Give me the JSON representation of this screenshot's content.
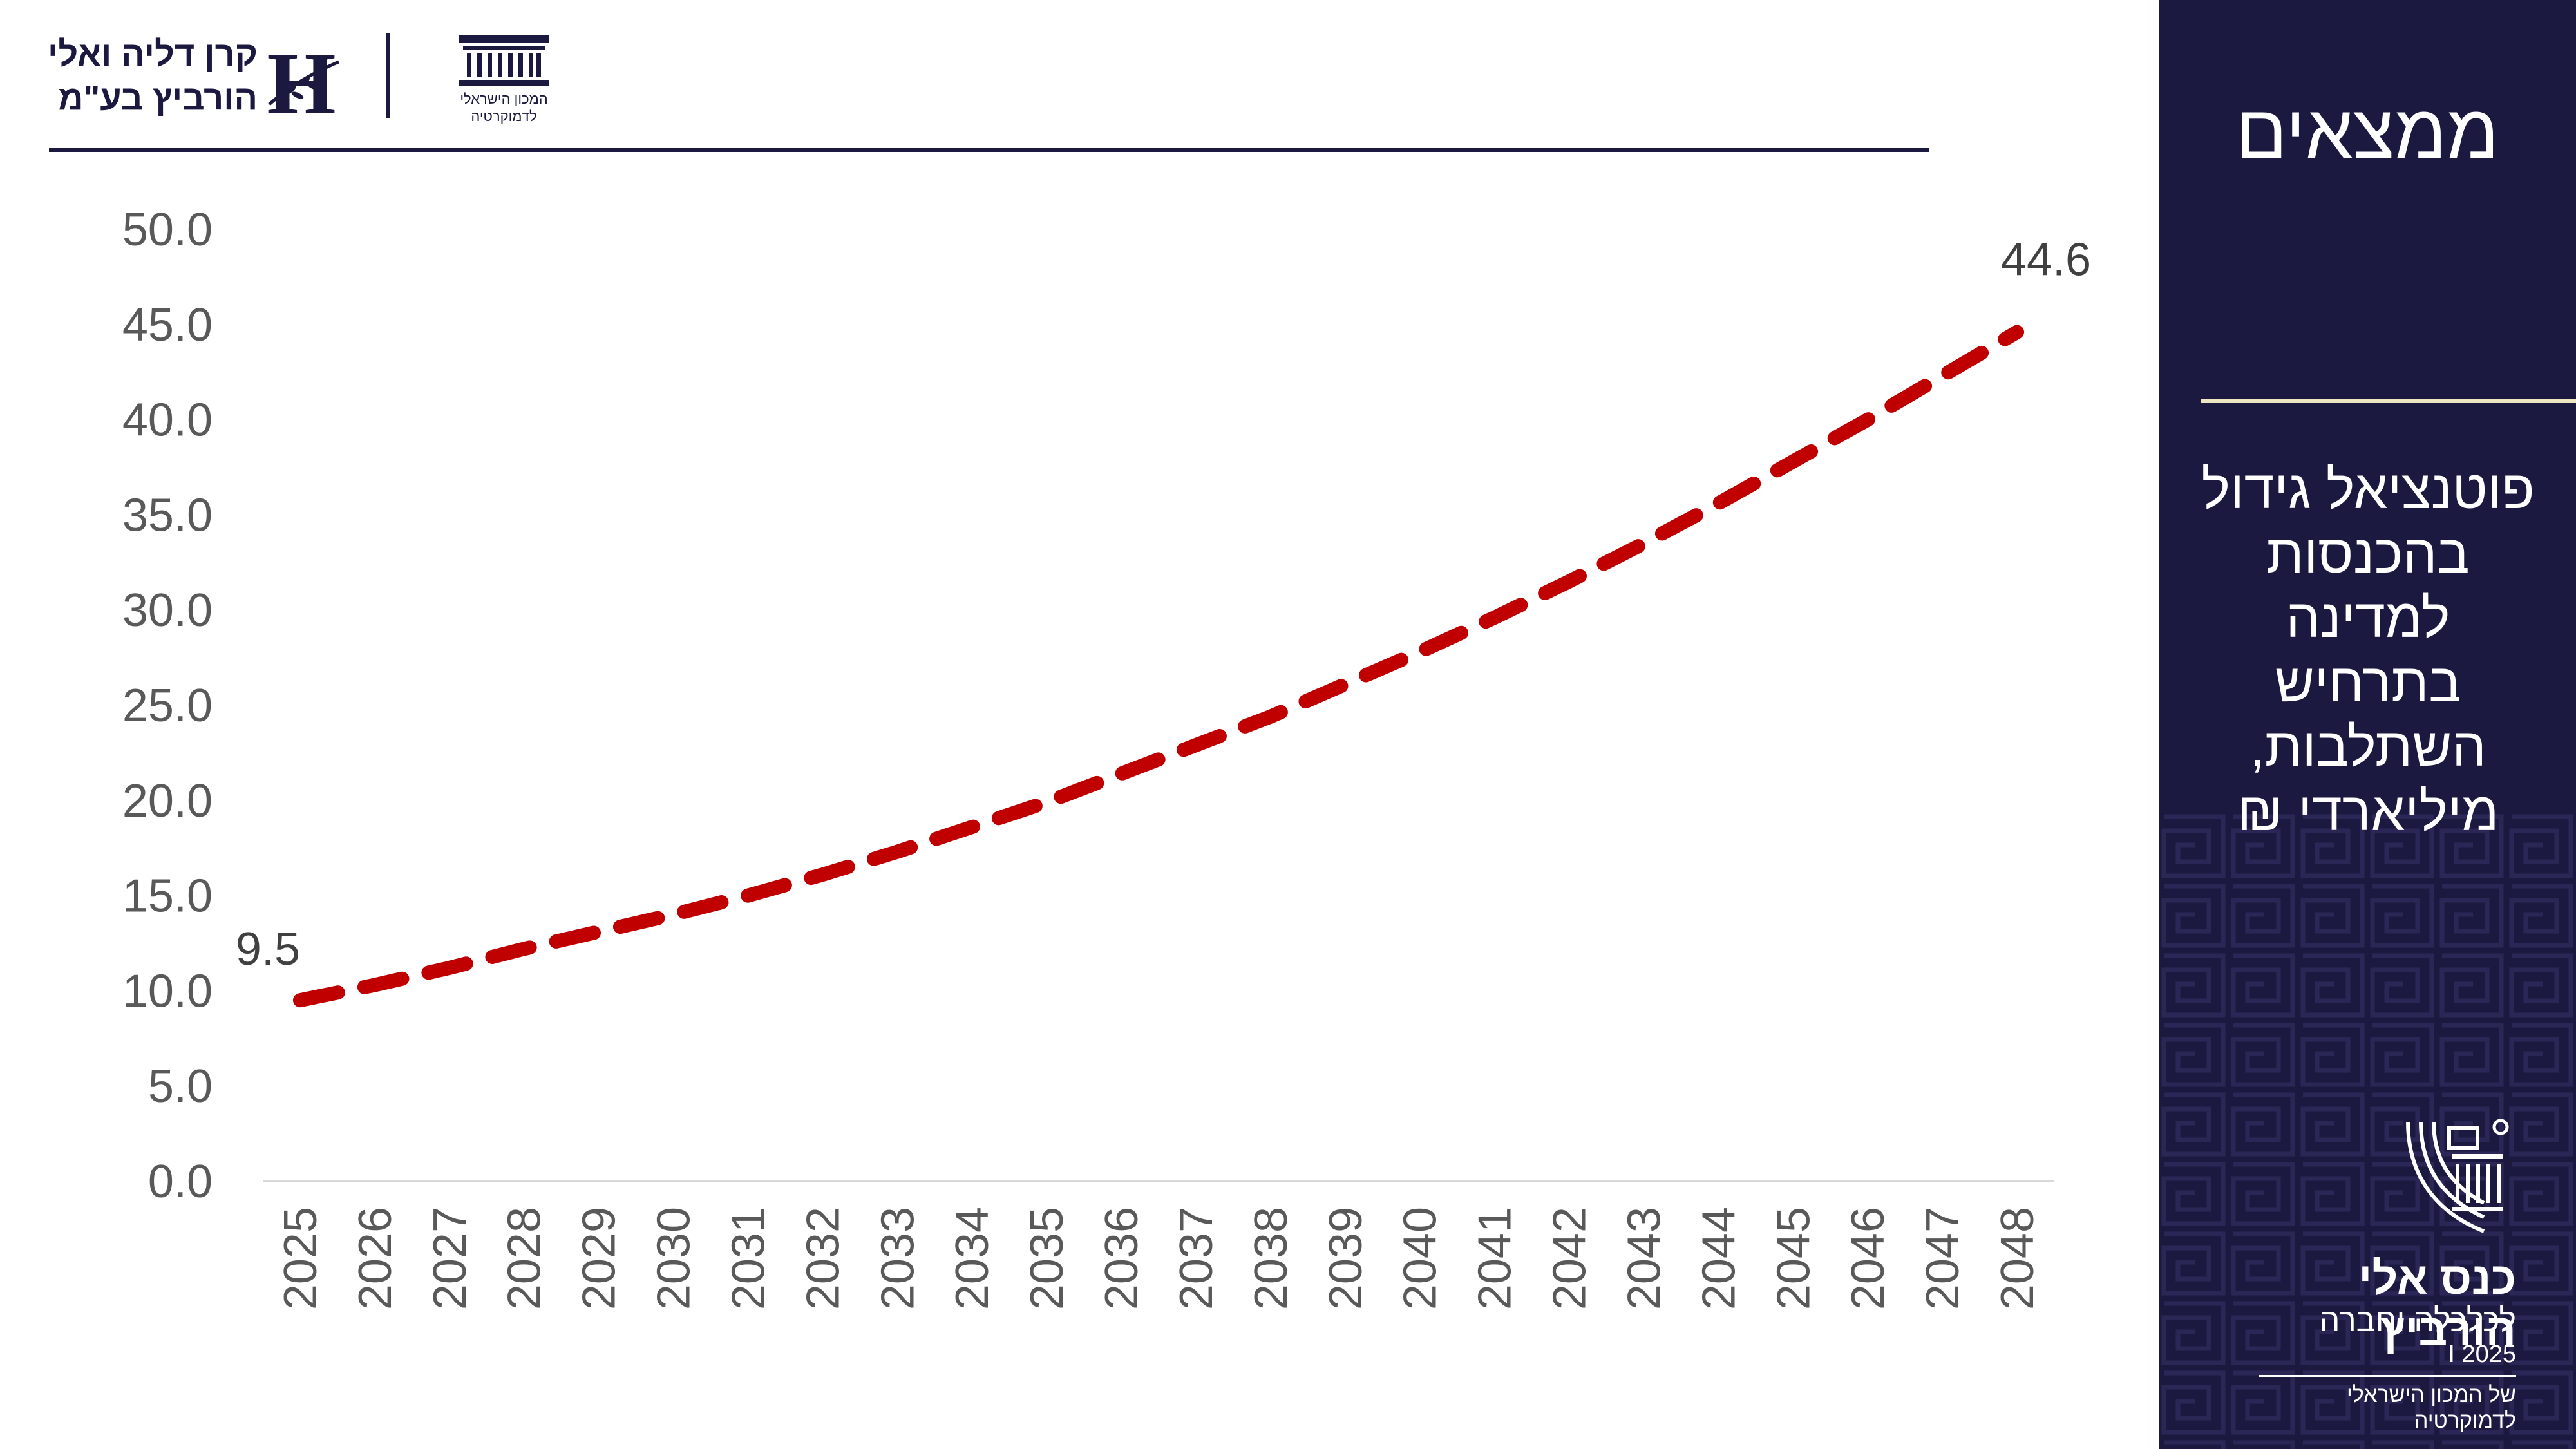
{
  "header": {
    "foundation_name_line1": "קרן דליה ואלי",
    "foundation_name_line2": "הורביץ בע\"מ",
    "foundation_logo_letter": "H",
    "institute_name_line1": "המכון הישראלי",
    "institute_name_line2": "לדמוקרטיה"
  },
  "panel": {
    "heading": "ממצאים",
    "subtitle_lines": [
      "פוטנציאל גידול",
      "בהכנסות",
      "למדינה",
      "בתרחיש",
      "השתלבות,",
      "מיליארדי ₪"
    ],
    "conference_title": "כנס אלי הורביץ",
    "conference_subtitle": "לכלכלה וחברה",
    "conference_year": "2025 I",
    "conference_org": "של המכון הישראלי לדמוקרטיה"
  },
  "colors": {
    "brand_navy": "#1c1940",
    "panel_rule": "#ece6c2",
    "series_red": "#c00000"
  },
  "chart_data": {
    "type": "line",
    "line_style": "dashed",
    "title": "",
    "xlabel": "",
    "ylabel": "",
    "ylim": [
      0,
      50
    ],
    "y_ticks": [
      "0.0",
      "5.0",
      "10.0",
      "15.0",
      "20.0",
      "25.0",
      "30.0",
      "35.0",
      "40.0",
      "45.0",
      "50.0"
    ],
    "grid": false,
    "legend": "none",
    "categories": [
      "2025",
      "2026",
      "2027",
      "2028",
      "2029",
      "2030",
      "2031",
      "2032",
      "2033",
      "2034",
      "2035",
      "2036",
      "2037",
      "2038",
      "2039",
      "2040",
      "2041",
      "2042",
      "2043",
      "2044",
      "2045",
      "2046",
      "2047",
      "2048"
    ],
    "series": [
      {
        "name": "",
        "color": "#c00000",
        "values": [
          9.5,
          10.3,
          11.2,
          12.2,
          13.1,
          14.0,
          15.0,
          16.1,
          17.3,
          18.6,
          19.9,
          21.4,
          22.9,
          24.4,
          26.1,
          27.8,
          29.6,
          31.5,
          33.5,
          35.6,
          37.8,
          40.0,
          42.3,
          44.6
        ]
      }
    ],
    "data_labels": [
      {
        "category": "2025",
        "text": "9.5"
      },
      {
        "category": "2048",
        "text": "44.6"
      }
    ]
  }
}
